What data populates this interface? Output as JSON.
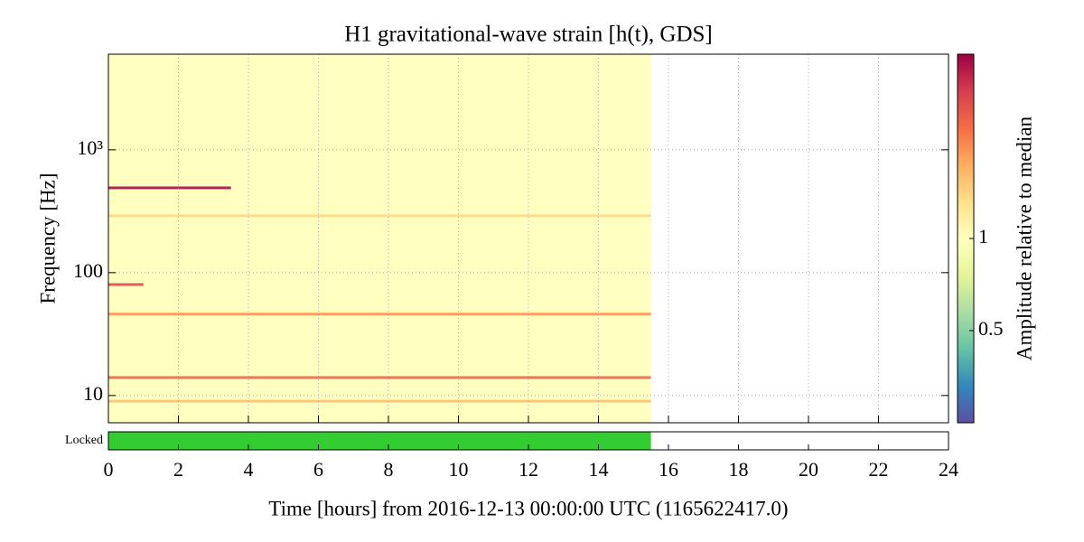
{
  "chart_data": {
    "type": "spectrogram",
    "title": "H1 gravitational-wave strain [h(t), GDS]",
    "xlabel": "Time [hours] from 2016-12-13 00:00:00 UTC (1165622417.0)",
    "ylabel": "Frequency [Hz]",
    "xlim": [
      0,
      24
    ],
    "xticks": [
      0,
      2,
      4,
      6,
      8,
      10,
      12,
      14,
      16,
      18,
      20,
      22,
      24
    ],
    "ylim": [
      6,
      6000
    ],
    "ylog": true,
    "yticks": [
      10,
      100,
      {
        "value": 1000,
        "label": "10³"
      }
    ],
    "grid": true,
    "coverage": {
      "start": 0,
      "end": 15.5,
      "amplitude": 1
    },
    "features": [
      {
        "frequency": 490,
        "start": 0,
        "end": 3.5,
        "amplitude": 4
      },
      {
        "frequency": 290,
        "start": 0,
        "end": 15.5,
        "amplitude": 1.4
      },
      {
        "frequency": 80,
        "start": 0,
        "end": 1,
        "amplitude": 3
      },
      {
        "frequency": 46,
        "start": 0,
        "end": 15.5,
        "amplitude": 2
      },
      {
        "frequency": 14,
        "start": 0,
        "end": 15.5,
        "amplitude": 2.5
      },
      {
        "frequency": 9,
        "start": 0,
        "end": 15.5,
        "amplitude": 1.6
      }
    ],
    "colorbar": {
      "label": "Amplitude relative to median",
      "clim": [
        0.25,
        4
      ],
      "log": true,
      "ticks": [
        0.5,
        1
      ],
      "colormap": [
        "#5e4fa2",
        "#3288bd",
        "#66c2a5",
        "#abdda4",
        "#e6f598",
        "#ffffbf",
        "#fee08b",
        "#fdae61",
        "#f46d43",
        "#d53e4f",
        "#9e0142"
      ]
    },
    "state": {
      "label": "Locked",
      "color": "#33cc33",
      "segments": [
        [
          0,
          15.5
        ]
      ]
    }
  }
}
